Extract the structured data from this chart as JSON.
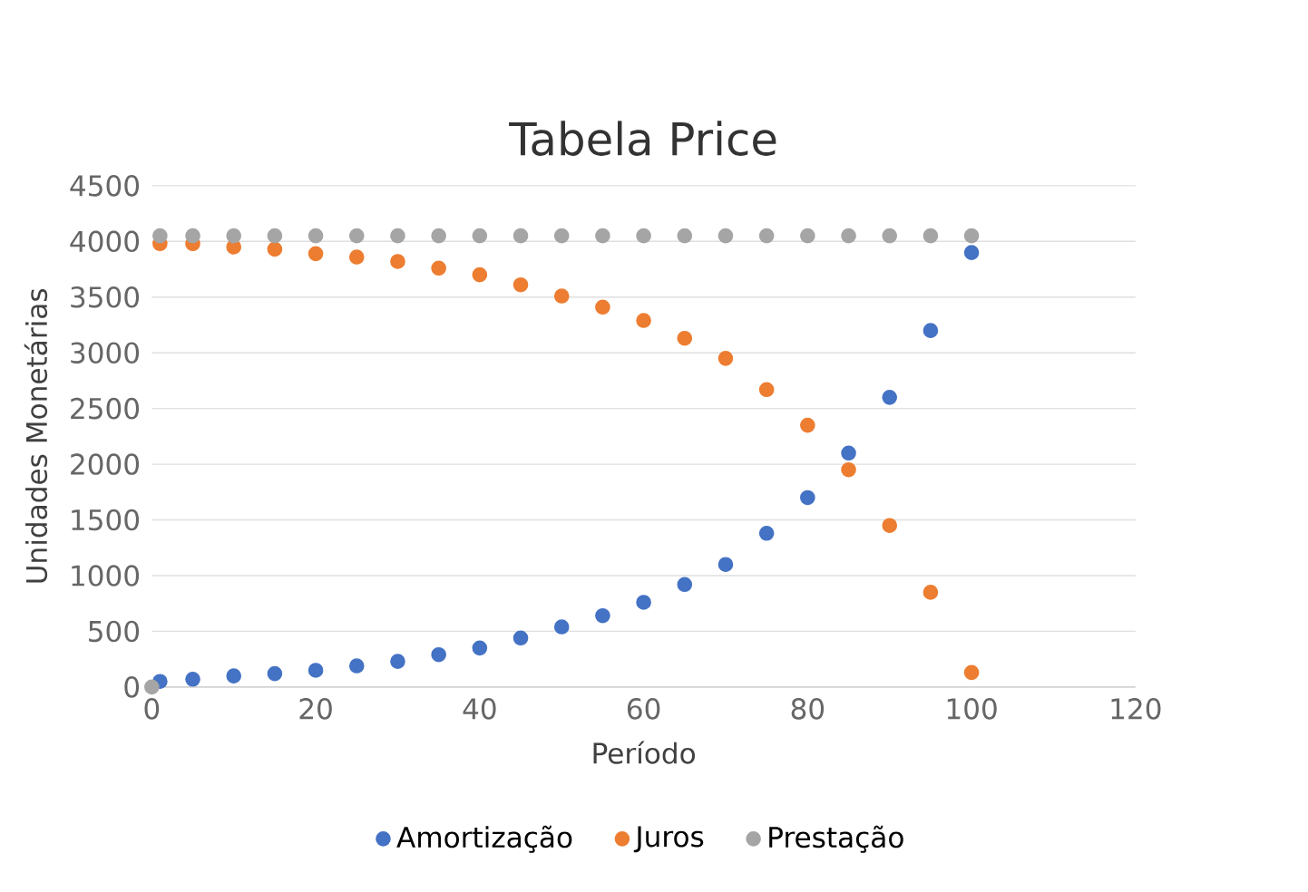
{
  "chart_data": {
    "type": "scatter",
    "title": "Tabela Price",
    "xlabel": "Período",
    "ylabel": "Unidades Monetárias",
    "xlim": [
      0,
      120
    ],
    "xticks": [
      0,
      20,
      40,
      60,
      80,
      100,
      120
    ],
    "ylim": [
      0,
      4500
    ],
    "yticks": [
      0,
      500,
      1000,
      1500,
      2000,
      2500,
      3000,
      3500,
      4000,
      4500
    ],
    "grid": "y",
    "legend": "bottom",
    "marker": "circle",
    "series": [
      {
        "name": "Amortização",
        "color": "#4472c4",
        "x": [
          1,
          5,
          10,
          15,
          20,
          25,
          30,
          35,
          40,
          45,
          50,
          55,
          60,
          65,
          70,
          75,
          80,
          85,
          90,
          95,
          100
        ],
        "values": [
          50,
          70,
          100,
          120,
          150,
          190,
          230,
          290,
          350,
          440,
          540,
          640,
          760,
          920,
          1100,
          1380,
          1700,
          2100,
          2600,
          3200,
          3900
        ]
      },
      {
        "name": "Juros",
        "color": "#ed7d31",
        "x": [
          1,
          5,
          10,
          15,
          20,
          25,
          30,
          35,
          40,
          45,
          50,
          55,
          60,
          65,
          70,
          75,
          80,
          85,
          90,
          95,
          100
        ],
        "values": [
          3980,
          3980,
          3950,
          3930,
          3890,
          3860,
          3820,
          3760,
          3700,
          3610,
          3510,
          3410,
          3290,
          3130,
          2950,
          2670,
          2350,
          1950,
          1450,
          850,
          130
        ]
      },
      {
        "name": "Prestação",
        "color": "#a5a5a5",
        "x": [
          0,
          1,
          5,
          10,
          15,
          20,
          25,
          30,
          35,
          40,
          45,
          50,
          55,
          60,
          65,
          70,
          75,
          80,
          85,
          90,
          95,
          100
        ],
        "values": [
          0,
          4050,
          4050,
          4050,
          4050,
          4050,
          4050,
          4050,
          4050,
          4050,
          4050,
          4050,
          4050,
          4050,
          4050,
          4050,
          4050,
          4050,
          4050,
          4050,
          4050,
          4050
        ]
      }
    ]
  }
}
